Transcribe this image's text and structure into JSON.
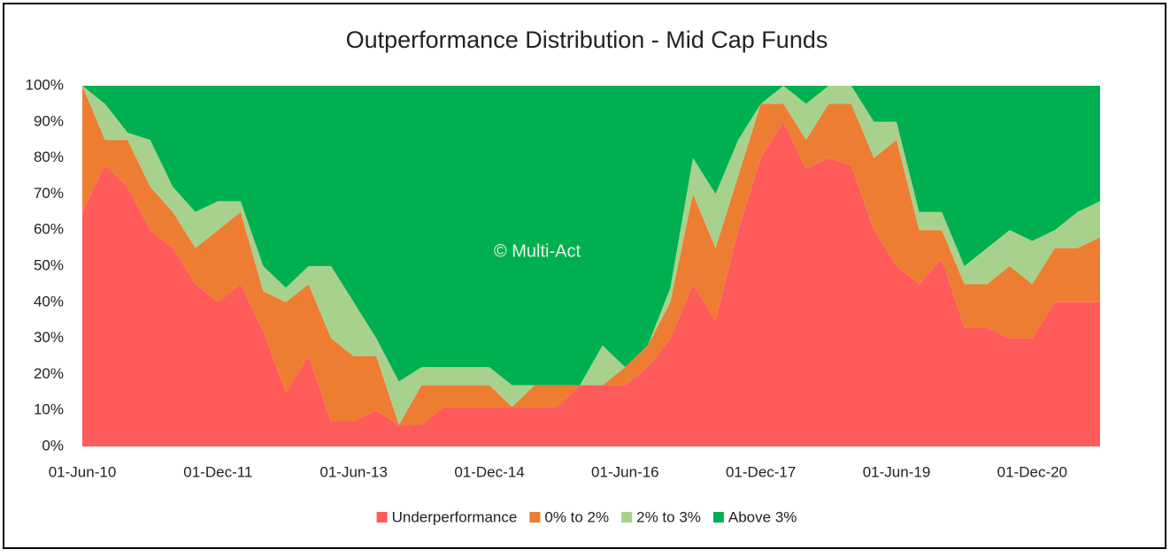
{
  "chart_data": {
    "type": "stacked_area_100",
    "title": "Outperformance  Distribution - Mid Cap Funds",
    "annotation": "© Multi-Act",
    "categories": [
      "01-Jun-10",
      null,
      null,
      null,
      null,
      null,
      "01-Dec-11",
      null,
      null,
      null,
      null,
      null,
      "01-Jun-13",
      null,
      null,
      null,
      null,
      null,
      "01-Dec-14",
      null,
      null,
      null,
      null,
      null,
      "01-Jun-16",
      null,
      null,
      null,
      null,
      null,
      "01-Dec-17",
      null,
      null,
      null,
      null,
      null,
      "01-Jun-19",
      null,
      null,
      null,
      null,
      null,
      "01-Dec-20",
      null,
      null,
      null
    ],
    "series": [
      {
        "name": "Underperformance",
        "color": "#ff5b5b",
        "values": [
          65,
          78,
          72,
          60,
          55,
          45,
          40,
          45,
          32,
          15,
          25,
          7,
          7,
          10,
          6,
          6,
          11,
          11,
          11,
          11,
          11,
          11,
          17,
          17,
          17,
          22,
          30,
          45,
          35,
          60,
          80,
          90,
          77,
          80,
          78,
          60,
          50,
          45,
          52,
          33,
          33,
          30,
          30,
          40,
          40,
          40
        ]
      },
      {
        "name": "0% to 2%",
        "color": "#ed7d31",
        "values": [
          35,
          7,
          13,
          12,
          10,
          10,
          20,
          20,
          11,
          25,
          20,
          23,
          18,
          15,
          0,
          11,
          6,
          6,
          6,
          0,
          6,
          6,
          0,
          0,
          5,
          6,
          10,
          25,
          20,
          15,
          15,
          5,
          8,
          15,
          17,
          20,
          35,
          15,
          8,
          12,
          12,
          20,
          15,
          15,
          15,
          18
        ]
      },
      {
        "name": "2% to 3%",
        "color": "#a9d18e",
        "values": [
          0,
          10,
          2,
          13,
          7,
          10,
          8,
          3,
          7,
          4,
          5,
          20,
          15,
          5,
          12,
          5,
          5,
          5,
          5,
          6,
          0,
          0,
          0,
          11,
          0,
          0,
          4,
          10,
          15,
          10,
          0,
          5,
          10,
          5,
          5,
          10,
          5,
          5,
          5,
          5,
          10,
          10,
          12,
          5,
          10,
          10
        ]
      },
      {
        "name": "Above 3%",
        "color": "#00b050",
        "values": [
          0,
          5,
          13,
          15,
          28,
          35,
          32,
          32,
          50,
          56,
          50,
          50,
          60,
          70,
          82,
          78,
          78,
          78,
          78,
          83,
          83,
          83,
          83,
          72,
          78,
          72,
          56,
          20,
          30,
          15,
          5,
          0,
          5,
          0,
          0,
          10,
          10,
          35,
          35,
          50,
          45,
          40,
          43,
          40,
          35,
          32
        ]
      }
    ],
    "ylim": [
      0,
      100
    ],
    "yticks": [
      {
        "value": 0,
        "label": "0%"
      },
      {
        "value": 10,
        "label": "10%"
      },
      {
        "value": 20,
        "label": "20%"
      },
      {
        "value": 30,
        "label": "30%"
      },
      {
        "value": 40,
        "label": "40%"
      },
      {
        "value": 50,
        "label": "50%"
      },
      {
        "value": 60,
        "label": "60%"
      },
      {
        "value": 70,
        "label": "70%"
      },
      {
        "value": 80,
        "label": "80%"
      },
      {
        "value": 90,
        "label": "90%"
      },
      {
        "value": 100,
        "label": "100%"
      }
    ],
    "legend": "bottom",
    "grid": false
  }
}
